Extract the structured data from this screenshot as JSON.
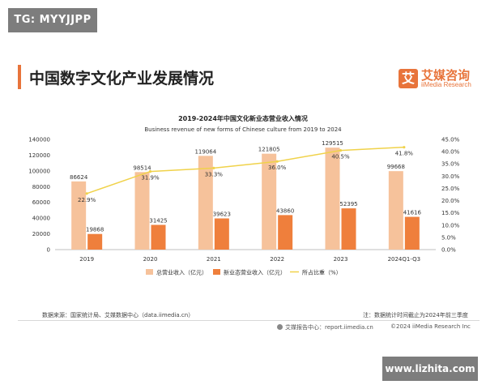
{
  "watermark_top": "TG: MYYJJPP",
  "page_title": "中国数字文化产业发展情况",
  "brand": {
    "name": "艾媒咨询",
    "sub": "iiMedia Research",
    "mark": "艾"
  },
  "source_note": "数据来源：国家统计局、艾媒数据中心（data.iimedia.cn）",
  "stat_note": "注：数据统计时间截止为2024年前三季度",
  "footer_left": "艾媒报告中心：report.iimedia.cn",
  "footer_right": "©2024 iiMedia Research Inc",
  "watermark_bottom": "www.lizhita.com",
  "colors": {
    "total": "#f6c29b",
    "new": "#ef7f3c",
    "share": "#f0d24a",
    "accent": "#e8743b"
  },
  "chart_data": {
    "type": "bar",
    "title": "2019-2024年中国文化新业态营业收入情况",
    "subtitle": "Business revenue of new forms of Chinese culture from 2019 to 2024",
    "categories": [
      "2019",
      "2020",
      "2021",
      "2022",
      "2023",
      "2024Q1-Q3"
    ],
    "series": [
      {
        "name": "总营业收入（亿元）",
        "kind": "bar",
        "axis": "left",
        "values": [
          86624,
          98514,
          119064,
          121805,
          129515,
          99668
        ]
      },
      {
        "name": "新业态营业收入（亿元）",
        "kind": "bar",
        "axis": "left",
        "values": [
          19868,
          31425,
          39623,
          43860,
          52395,
          41616
        ]
      },
      {
        "name": "所占比重（%）",
        "kind": "line",
        "axis": "right",
        "values": [
          22.9,
          31.9,
          33.3,
          36.0,
          40.5,
          41.8
        ],
        "labels": [
          "22.9%",
          "31.9%",
          "33.3%",
          "36.0%",
          "40.5%",
          "41.8%"
        ]
      }
    ],
    "y_left": {
      "min": 0,
      "max": 140000,
      "ticks": [
        "0",
        "20000",
        "40000",
        "60000",
        "80000",
        "100000",
        "120000",
        "140000"
      ]
    },
    "y_right": {
      "min": 0,
      "max": 45,
      "ticks": [
        "0.0%",
        "5.0%",
        "10.0%",
        "15.0%",
        "20.0%",
        "25.0%",
        "30.0%",
        "35.0%",
        "40.0%",
        "45.0%"
      ]
    },
    "grid": false,
    "legend_position": "bottom"
  }
}
